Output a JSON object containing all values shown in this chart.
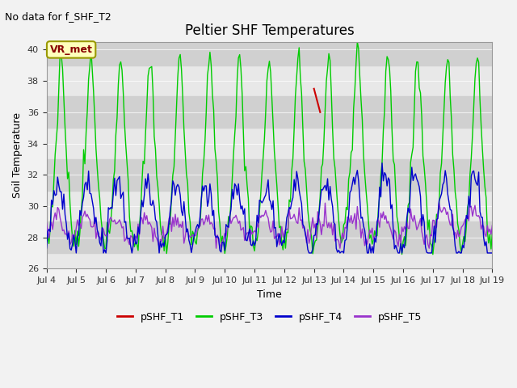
{
  "title": "Peltier SHF Temperatures",
  "xlabel": "Time",
  "ylabel": "Soil Temperature",
  "no_data_text": "No data for f_SHF_T2",
  "vr_met_label": "VR_met",
  "ylim": [
    26,
    40.5
  ],
  "yticks": [
    26,
    28,
    30,
    32,
    34,
    36,
    38,
    40
  ],
  "bg_color": "#f2f2f2",
  "plot_bg_color": "#e8e8e8",
  "stripe_ranges": [
    [
      27.0,
      29.0
    ],
    [
      31.0,
      33.0
    ],
    [
      35.0,
      37.0
    ],
    [
      39.0,
      41.0
    ]
  ],
  "line_colors": {
    "T1": "#cc0000",
    "T3": "#00cc00",
    "T4": "#0000cc",
    "T5": "#9933cc"
  },
  "legend_labels": [
    "pSHF_T1",
    "pSHF_T3",
    "pSHF_T4",
    "pSHF_T5"
  ],
  "legend_colors": [
    "#cc0000",
    "#00cc00",
    "#0000cc",
    "#9933cc"
  ],
  "xtick_labels": [
    "Jul 4",
    "Jul 5",
    "Jul 6",
    "Jul 7",
    "Jul 8",
    "Jul 9",
    "Jul 10",
    "Jul 11",
    "Jul 12",
    "Jul 13",
    "Jul 14",
    "Jul 15",
    "Jul 16",
    "Jul 17",
    "Jul 18",
    "Jul 19"
  ],
  "figsize": [
    6.4,
    4.8
  ],
  "dpi": 100
}
